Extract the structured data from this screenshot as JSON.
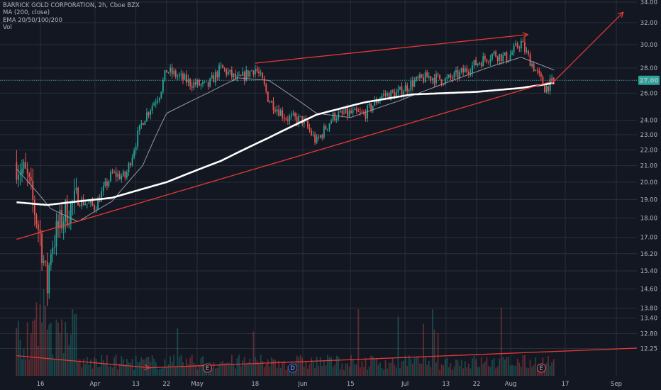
{
  "legend": {
    "title": "BARRICK GOLD CORPORATION, 2h, Cboe BZX",
    "ma": "MA (200, close)",
    "ema": "EMA 20/50/100/200",
    "vol": "Vol"
  },
  "colors": {
    "background": "#131722",
    "grid": "#2a2e39",
    "up": "#26a69a",
    "down": "#ef5350",
    "ma200": "#ffffff",
    "ema20": "#9598a1",
    "trendline": "#e53935",
    "last_price_bg": "#26a69a"
  },
  "chart_data": {
    "type": "candlestick",
    "title": "BARRICK GOLD CORPORATION, 2h, Cboe BZX",
    "y_scale": "log",
    "ylim": [
      12.0,
      34.0
    ],
    "y_ticks": [
      "34.00",
      "32.00",
      "30.00",
      "28.00",
      "27.00",
      "26.00",
      "24.00",
      "23.00",
      "22.00",
      "21.00",
      "20.00",
      "19.00",
      "18.00",
      "17.00",
      "16.20",
      "15.40",
      "14.60",
      "13.80",
      "13.40",
      "12.80",
      "12.25"
    ],
    "x_ticks": [
      "16",
      "Apr",
      "13",
      "22",
      "May",
      "18",
      "Jun",
      "15",
      "Jul",
      "13",
      "22",
      "Aug",
      "17",
      "Sep"
    ],
    "last_price": "27.00",
    "event_markers": [
      {
        "label": "E",
        "x": "May 4"
      },
      {
        "label": "D",
        "x": "May 29"
      },
      {
        "label": "E",
        "x": "Aug 10"
      }
    ],
    "price_path": [
      {
        "x": "Mar 9",
        "close": 21.2
      },
      {
        "x": "Mar 12",
        "close": 20.3
      },
      {
        "x": "Mar 16",
        "close": 17.0
      },
      {
        "x": "Mar 18",
        "close": 14.6
      },
      {
        "x": "Mar 19",
        "close": 16.5
      },
      {
        "x": "Mar 23",
        "close": 18.2
      },
      {
        "x": "Mar 27",
        "close": 19.0
      },
      {
        "x": "Apr 1",
        "close": 18.6
      },
      {
        "x": "Apr 6",
        "close": 20.5
      },
      {
        "x": "Apr 10",
        "close": 20.3
      },
      {
        "x": "Apr 15",
        "close": 24.0
      },
      {
        "x": "Apr 20",
        "close": 26.0
      },
      {
        "x": "Apr 22",
        "close": 27.8
      },
      {
        "x": "Apr 29",
        "close": 26.8
      },
      {
        "x": "May 4",
        "close": 26.5
      },
      {
        "x": "May 8",
        "close": 28.0
      },
      {
        "x": "May 13",
        "close": 27.0
      },
      {
        "x": "May 18",
        "close": 28.0
      },
      {
        "x": "May 20",
        "close": 27.0
      },
      {
        "x": "May 22",
        "close": 25.5
      },
      {
        "x": "May 27",
        "close": 24.2
      },
      {
        "x": "Jun 1",
        "close": 24.0
      },
      {
        "x": "Jun 5",
        "close": 22.5
      },
      {
        "x": "Jun 10",
        "close": 24.3
      },
      {
        "x": "Jun 15",
        "close": 24.5
      },
      {
        "x": "Jun 19",
        "close": 24.4
      },
      {
        "x": "Jun 24",
        "close": 25.8
      },
      {
        "x": "Jun 29",
        "close": 26.0
      },
      {
        "x": "Jul 3",
        "close": 26.8
      },
      {
        "x": "Jul 8",
        "close": 27.3
      },
      {
        "x": "Jul 13",
        "close": 27.0
      },
      {
        "x": "Jul 17",
        "close": 27.5
      },
      {
        "x": "Jul 22",
        "close": 28.4
      },
      {
        "x": "Jul 27",
        "close": 29.2
      },
      {
        "x": "Jul 31",
        "close": 28.8
      },
      {
        "x": "Aug 4",
        "close": 30.2
      },
      {
        "x": "Aug 6",
        "close": 29.0
      },
      {
        "x": "Aug 11",
        "close": 26.4
      },
      {
        "x": "Aug 14",
        "close": 27.0
      }
    ],
    "ma200_path": [
      {
        "x": "Mar 9",
        "v": 18.85
      },
      {
        "x": "Mar 18",
        "v": 18.7
      },
      {
        "x": "Mar 27",
        "v": 18.9
      },
      {
        "x": "Apr 6",
        "v": 19.1
      },
      {
        "x": "Apr 22",
        "v": 20.0
      },
      {
        "x": "May 8",
        "v": 21.3
      },
      {
        "x": "May 22",
        "v": 22.8
      },
      {
        "x": "Jun 5",
        "v": 24.4
      },
      {
        "x": "Jun 19",
        "v": 25.3
      },
      {
        "x": "Jul 3",
        "v": 25.9
      },
      {
        "x": "Jul 22",
        "v": 26.1
      },
      {
        "x": "Aug 4",
        "v": 26.4
      },
      {
        "x": "Aug 14",
        "v": 26.8
      }
    ],
    "ema20_path": [
      {
        "x": "Mar 9",
        "v": 20.8
      },
      {
        "x": "Mar 19",
        "v": 18.5
      },
      {
        "x": "Mar 27",
        "v": 17.8
      },
      {
        "x": "Apr 6",
        "v": 18.9
      },
      {
        "x": "Apr 15",
        "v": 21.0
      },
      {
        "x": "Apr 22",
        "v": 24.5
      },
      {
        "x": "May 4",
        "v": 26.0
      },
      {
        "x": "May 13",
        "v": 27.2
      },
      {
        "x": "May 22",
        "v": 27.0
      },
      {
        "x": "Jun 5",
        "v": 24.5
      },
      {
        "x": "Jun 15",
        "v": 24.2
      },
      {
        "x": "Jun 29",
        "v": 25.4
      },
      {
        "x": "Jul 13",
        "v": 26.8
      },
      {
        "x": "Jul 27",
        "v": 28.2
      },
      {
        "x": "Aug 4",
        "v": 28.9
      },
      {
        "x": "Aug 14",
        "v": 27.8
      }
    ],
    "trendlines": [
      {
        "from": {
          "x": "Mar 9",
          "y": 16.9
        },
        "to": {
          "x": "Aug 14",
          "y": 27.0
        }
      },
      {
        "from": {
          "x": "May 18",
          "y": 28.4
        },
        "to": {
          "x": "Aug 6",
          "y": 30.9
        }
      },
      {
        "from": {
          "x": "Aug 14",
          "y": 27.0
        },
        "to": {
          "x": "Sep 3",
          "y": 33.0
        }
      }
    ],
    "volume_trendlines": [
      {
        "from": {
          "x": "Mar 9",
          "y": 0.45
        },
        "to": {
          "x": "Apr 17",
          "y": 0.18
        }
      },
      {
        "from": {
          "x": "Apr 17",
          "y": 0.18
        },
        "to": {
          "x": "Sep 9",
          "y": 0.62
        }
      }
    ]
  }
}
